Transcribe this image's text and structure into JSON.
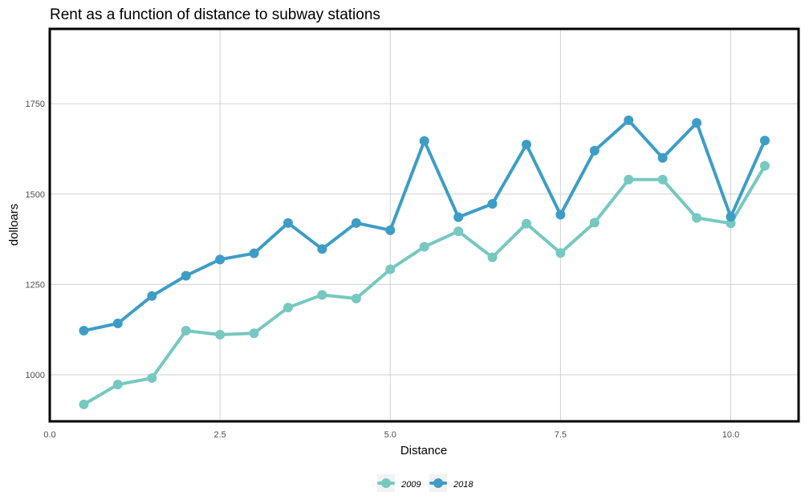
{
  "chart_data": {
    "type": "line",
    "title": "Rent as a function of distance to subway stations",
    "xlabel": "Distance",
    "ylabel": "dolloars",
    "xlim": [
      0,
      11
    ],
    "ylim": [
      870,
      1960
    ],
    "x_ticks": [
      0,
      2.5,
      5,
      7.5,
      10
    ],
    "x_tick_labels": [
      "0.0",
      "2.5",
      "5.0",
      "7.5",
      "10.0"
    ],
    "y_ticks": [
      1000,
      1250,
      1500,
      1750
    ],
    "y_tick_labels": [
      "1000",
      "1250",
      "1500",
      "1750"
    ],
    "grid": true,
    "legend_position": "bottom",
    "x": [
      0.5,
      1.0,
      1.5,
      2.0,
      2.5,
      3.0,
      3.5,
      4.0,
      4.5,
      5.0,
      5.5,
      6.0,
      6.5,
      7.0,
      7.5,
      8.0,
      8.5,
      9.0,
      9.5,
      10.0,
      10.5
    ],
    "series": [
      {
        "name": "2009",
        "color": "#76c8c0",
        "values": [
          918,
          973,
          991,
          1122,
          1111,
          1115,
          1186,
          1221,
          1211,
          1292,
          1354,
          1397,
          1325,
          1418,
          1337,
          1421,
          1540,
          1540,
          1434,
          1419,
          1578
        ]
      },
      {
        "name": "2018",
        "color": "#3d9dc6",
        "values": [
          1122,
          1142,
          1218,
          1274,
          1319,
          1336,
          1420,
          1348,
          1420,
          1400,
          1647,
          1436,
          1473,
          1637,
          1443,
          1620,
          1704,
          1600,
          1697,
          1437,
          1648
        ]
      }
    ]
  }
}
